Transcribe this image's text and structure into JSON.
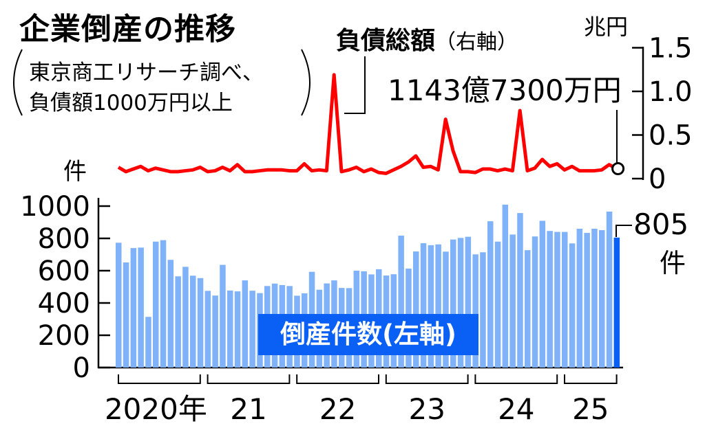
{
  "title": "企業倒産の推移",
  "source_line1": "東京商工リサーチ調べ、",
  "source_line2": "負債額1000万円以上",
  "debt_title": "負債総額",
  "debt_axis_note": "（右軸）",
  "right_unit": "兆円",
  "left_unit": "件",
  "debt_latest_label": "1143億7300万円",
  "count_latest_label": "805",
  "count_latest_unit": "件",
  "bar_series_label": "倒産件数(左軸)",
  "colors": {
    "bar": "#80b2fa",
    "bar_latest": "#0a5ff5",
    "line": "#ff0000"
  },
  "chart_data": {
    "type": "bar+line",
    "title": "企業倒産の推移",
    "x_start": "2020-01",
    "x_end": "2025-08",
    "year_labels": [
      "2020年",
      "21",
      "22",
      "23",
      "24",
      "25"
    ],
    "left_axis": {
      "label": "件",
      "ylim": [
        0,
        1000
      ],
      "ticks": [
        "1000",
        "800",
        "600",
        "400",
        "200",
        "0"
      ]
    },
    "right_axis": {
      "label": "兆円",
      "ylim": [
        0,
        1.5
      ],
      "ticks": [
        "1.5",
        "1.0",
        "0.5",
        "0"
      ]
    },
    "series": [
      {
        "name": "倒産件数(左軸)",
        "type": "bar",
        "values": [
          773,
          651,
          740,
          743,
          314,
          780,
          789,
          667,
          565,
          624,
          569,
          554,
          475,
          446,
          636,
          477,
          472,
          540,
          476,
          461,
          505,
          520,
          511,
          505,
          445,
          460,
          593,
          482,
          521,
          540,
          493,
          492,
          600,
          596,
          577,
          609,
          570,
          578,
          817,
          613,
          719,
          770,
          758,
          763,
          718,
          793,
          803,
          810,
          701,
          714,
          906,
          780,
          1009,
          824,
          957,
          727,
          812,
          909,
          846,
          840,
          840,
          769,
          860,
          834,
          860,
          851,
          966,
          805
        ]
      },
      {
        "name": "負債総額(右軸)",
        "type": "line",
        "values": [
          0.13,
          0.08,
          0.11,
          0.14,
          0.09,
          0.12,
          0.1,
          0.08,
          0.08,
          0.09,
          0.1,
          0.13,
          0.08,
          0.09,
          0.13,
          0.09,
          0.16,
          0.08,
          0.08,
          0.09,
          0.1,
          0.1,
          0.1,
          0.09,
          0.09,
          0.17,
          0.09,
          0.1,
          0.09,
          1.19,
          0.08,
          0.1,
          0.13,
          0.08,
          0.11,
          0.07,
          0.06,
          0.1,
          0.14,
          0.19,
          0.26,
          0.13,
          0.14,
          0.1,
          0.68,
          0.32,
          0.08,
          0.08,
          0.07,
          0.11,
          0.11,
          0.09,
          0.11,
          0.09,
          0.78,
          0.09,
          0.12,
          0.22,
          0.14,
          0.17,
          0.1,
          0.14,
          0.09,
          0.09,
          0.09,
          0.1,
          0.16,
          0.114
        ]
      }
    ]
  }
}
